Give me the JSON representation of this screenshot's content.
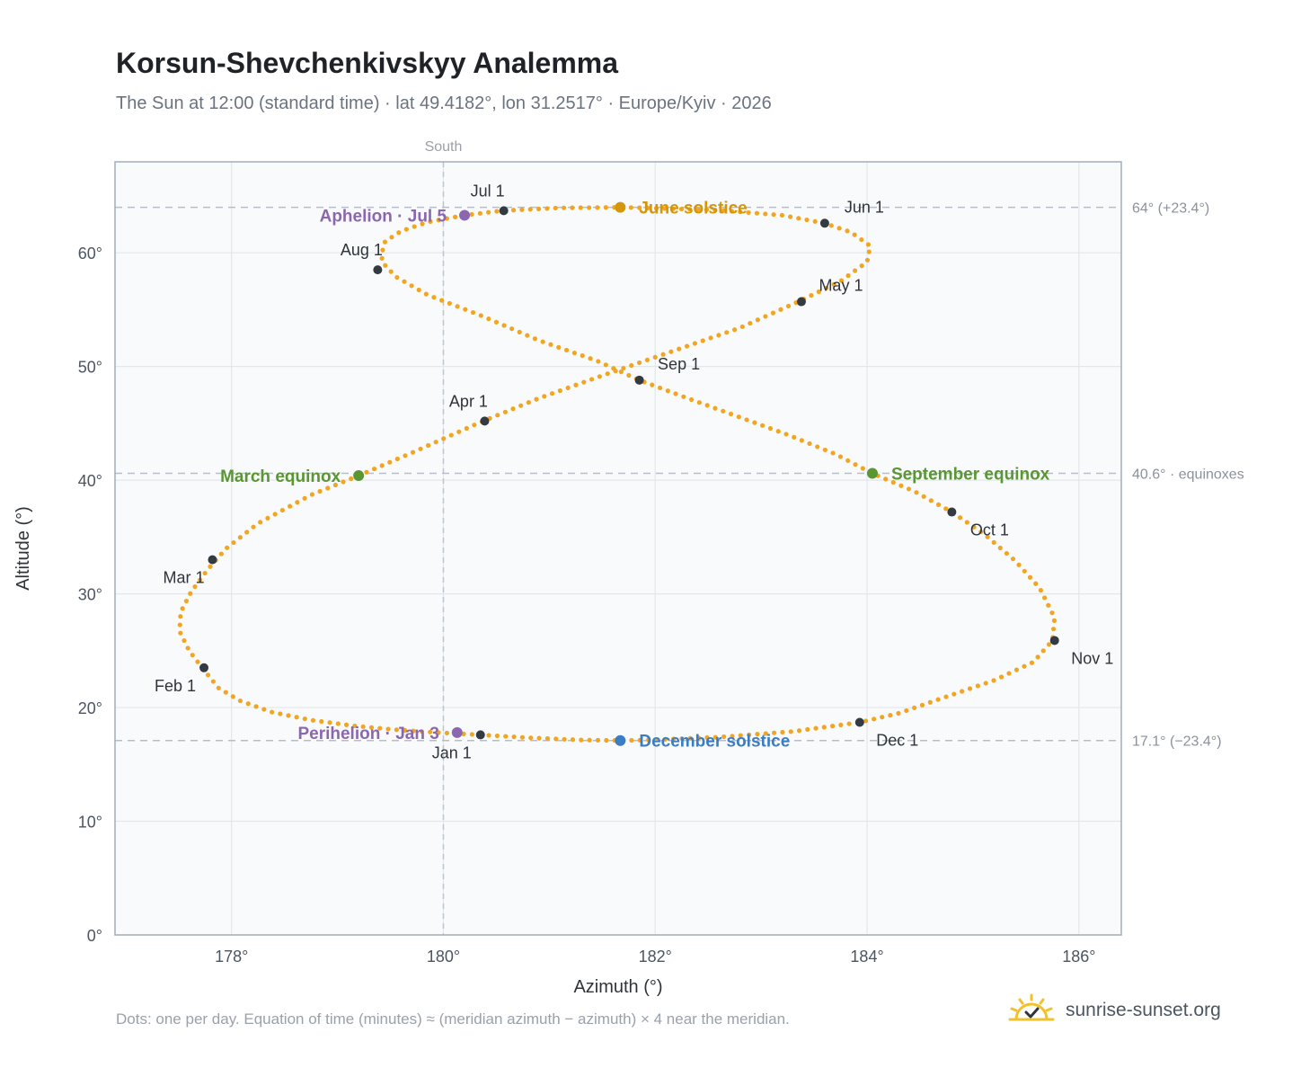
{
  "header": {
    "title": "Korsun-Shevchenkivskyy Analemma",
    "subtitle": "The Sun at 12:00 (standard time) · lat 49.4182°, lon 31.2517° · Europe/Kyiv · 2026"
  },
  "footer": {
    "note": "Dots: one per day. Equation of time (minutes) ≈ (meridian azimuth − azimuth) × 4 near the meridian.",
    "brand": "sunrise-sunset.org",
    "brand_icon": "sun-check-icon"
  },
  "colors": {
    "path": "#f2a521",
    "month_marker": "#333a42",
    "solstice_june": "#d4960a",
    "solstice_december": "#3b7dc4",
    "equinox": "#5a9632",
    "apsis": "#8b67b0",
    "guide": "#b7bec8",
    "plot_bg": "#f8fafc",
    "frame": "#a3adba"
  },
  "chart_data": {
    "type": "scatter",
    "title": "Korsun-Shevchenkivskyy Analemma",
    "xlabel": "Azimuth (°)",
    "ylabel": "Altitude (°)",
    "xlim": [
      176.9,
      186.4
    ],
    "ylim": [
      0,
      68
    ],
    "x_ticks": [
      178,
      180,
      182,
      184,
      186
    ],
    "x_tick_labels": [
      "178°",
      "180°",
      "182°",
      "184°",
      "186°"
    ],
    "y_ticks": [
      0,
      10,
      20,
      30,
      40,
      50,
      60
    ],
    "y_tick_labels": [
      "0°",
      "10°",
      "20°",
      "30°",
      "40°",
      "50°",
      "60°"
    ],
    "grid": true,
    "meridian": {
      "azimuth": 180,
      "label": "South"
    },
    "reference_lines": [
      {
        "altitude": 64.0,
        "label": "64° (+23.4°)"
      },
      {
        "altitude": 40.6,
        "label": "40.6° · equinoxes"
      },
      {
        "altitude": 17.1,
        "label": "17.1° (−23.4°)"
      }
    ],
    "daily_path": [
      [
        180.35,
        17.6
      ],
      [
        179.95,
        17.8
      ],
      [
        179.55,
        18.05
      ],
      [
        179.15,
        18.4
      ],
      [
        178.75,
        18.9
      ],
      [
        178.38,
        19.6
      ],
      [
        178.08,
        20.6
      ],
      [
        177.88,
        21.7
      ],
      [
        177.74,
        23.3
      ],
      [
        177.6,
        25.0
      ],
      [
        177.51,
        26.7
      ],
      [
        177.52,
        28.4
      ],
      [
        177.62,
        30.2
      ],
      [
        177.78,
        32.2
      ],
      [
        177.95,
        34.0
      ],
      [
        178.25,
        36.2
      ],
      [
        178.75,
        38.7
      ],
      [
        179.2,
        40.4
      ],
      [
        179.7,
        42.4
      ],
      [
        180.35,
        45.1
      ],
      [
        180.9,
        47.2
      ],
      [
        181.5,
        49.2
      ],
      [
        182.15,
        51.3
      ],
      [
        182.8,
        53.4
      ],
      [
        183.35,
        55.7
      ],
      [
        183.75,
        57.5
      ],
      [
        184.0,
        59.2
      ],
      [
        184.03,
        60.6
      ],
      [
        183.85,
        61.8
      ],
      [
        183.6,
        62.6
      ],
      [
        183.2,
        63.3
      ],
      [
        182.6,
        63.75
      ],
      [
        181.7,
        64.0
      ],
      [
        181.1,
        63.95
      ],
      [
        180.55,
        63.7
      ],
      [
        180.2,
        63.3
      ],
      [
        179.85,
        62.7
      ],
      [
        179.6,
        61.9
      ],
      [
        179.45,
        61.0
      ],
      [
        179.42,
        60.0
      ],
      [
        179.42,
        59.2
      ],
      [
        179.55,
        57.9
      ],
      [
        179.85,
        56.3
      ],
      [
        180.35,
        54.5
      ],
      [
        180.9,
        52.3
      ],
      [
        181.45,
        50.5
      ],
      [
        181.85,
        48.8
      ],
      [
        182.25,
        47.4
      ],
      [
        182.75,
        45.7
      ],
      [
        183.25,
        44.0
      ],
      [
        183.7,
        42.3
      ],
      [
        184.05,
        40.6
      ],
      [
        184.45,
        39.0
      ],
      [
        184.8,
        37.2
      ],
      [
        185.1,
        35.3
      ],
      [
        185.4,
        32.9
      ],
      [
        185.63,
        30.5
      ],
      [
        185.77,
        27.9
      ],
      [
        185.75,
        25.9
      ],
      [
        185.57,
        24.0
      ],
      [
        185.2,
        22.4
      ],
      [
        184.7,
        20.8
      ],
      [
        184.3,
        19.5
      ],
      [
        183.93,
        18.7
      ],
      [
        183.3,
        17.9
      ],
      [
        182.6,
        17.4
      ],
      [
        181.95,
        17.15
      ],
      [
        181.67,
        17.1
      ],
      [
        181.3,
        17.15
      ],
      [
        180.8,
        17.35
      ],
      [
        180.35,
        17.6
      ]
    ],
    "month_markers": [
      {
        "label": "Jan 1",
        "azimuth": 180.35,
        "altitude": 17.6,
        "anchor": "below-left"
      },
      {
        "label": "Feb 1",
        "azimuth": 177.74,
        "altitude": 23.5,
        "anchor": "below-left"
      },
      {
        "label": "Mar 1",
        "azimuth": 177.82,
        "altitude": 33.0,
        "anchor": "below-left"
      },
      {
        "label": "Apr 1",
        "azimuth": 180.39,
        "altitude": 45.2,
        "anchor": "above-left"
      },
      {
        "label": "May 1",
        "azimuth": 183.38,
        "altitude": 55.7,
        "anchor": "above-right"
      },
      {
        "label": "Jun 1",
        "azimuth": 183.6,
        "altitude": 62.6,
        "anchor": "above-right"
      },
      {
        "label": "Jul 1",
        "azimuth": 180.57,
        "altitude": 63.7,
        "anchor": "above-left"
      },
      {
        "label": "Aug 1",
        "azimuth": 179.38,
        "altitude": 58.5,
        "anchor": "above-left"
      },
      {
        "label": "Sep 1",
        "azimuth": 181.85,
        "altitude": 48.8,
        "anchor": "above-right"
      },
      {
        "label": "Oct 1",
        "azimuth": 184.8,
        "altitude": 37.2,
        "anchor": "below-right"
      },
      {
        "label": "Nov 1",
        "azimuth": 185.77,
        "altitude": 25.9,
        "anchor": "below-right"
      },
      {
        "label": "Dec 1",
        "azimuth": 183.93,
        "altitude": 18.7,
        "anchor": "below-right"
      }
    ],
    "events": [
      {
        "label": "June solstice",
        "azimuth": 181.67,
        "altitude": 64.0,
        "color": "#d4960a",
        "side": "right"
      },
      {
        "label": "December solstice",
        "azimuth": 181.67,
        "altitude": 17.1,
        "color": "#3b7dc4",
        "side": "right"
      },
      {
        "label": "March equinox",
        "azimuth": 179.2,
        "altitude": 40.4,
        "color": "#5a9632",
        "side": "left"
      },
      {
        "label": "September equinox",
        "azimuth": 184.05,
        "altitude": 40.6,
        "color": "#5a9632",
        "side": "right"
      },
      {
        "label": "Aphelion · Jul 5",
        "azimuth": 180.2,
        "altitude": 63.3,
        "color": "#8b67b0",
        "side": "left"
      },
      {
        "label": "Perihelion · Jan 3",
        "azimuth": 180.13,
        "altitude": 17.8,
        "color": "#8b67b0",
        "side": "left"
      }
    ]
  }
}
